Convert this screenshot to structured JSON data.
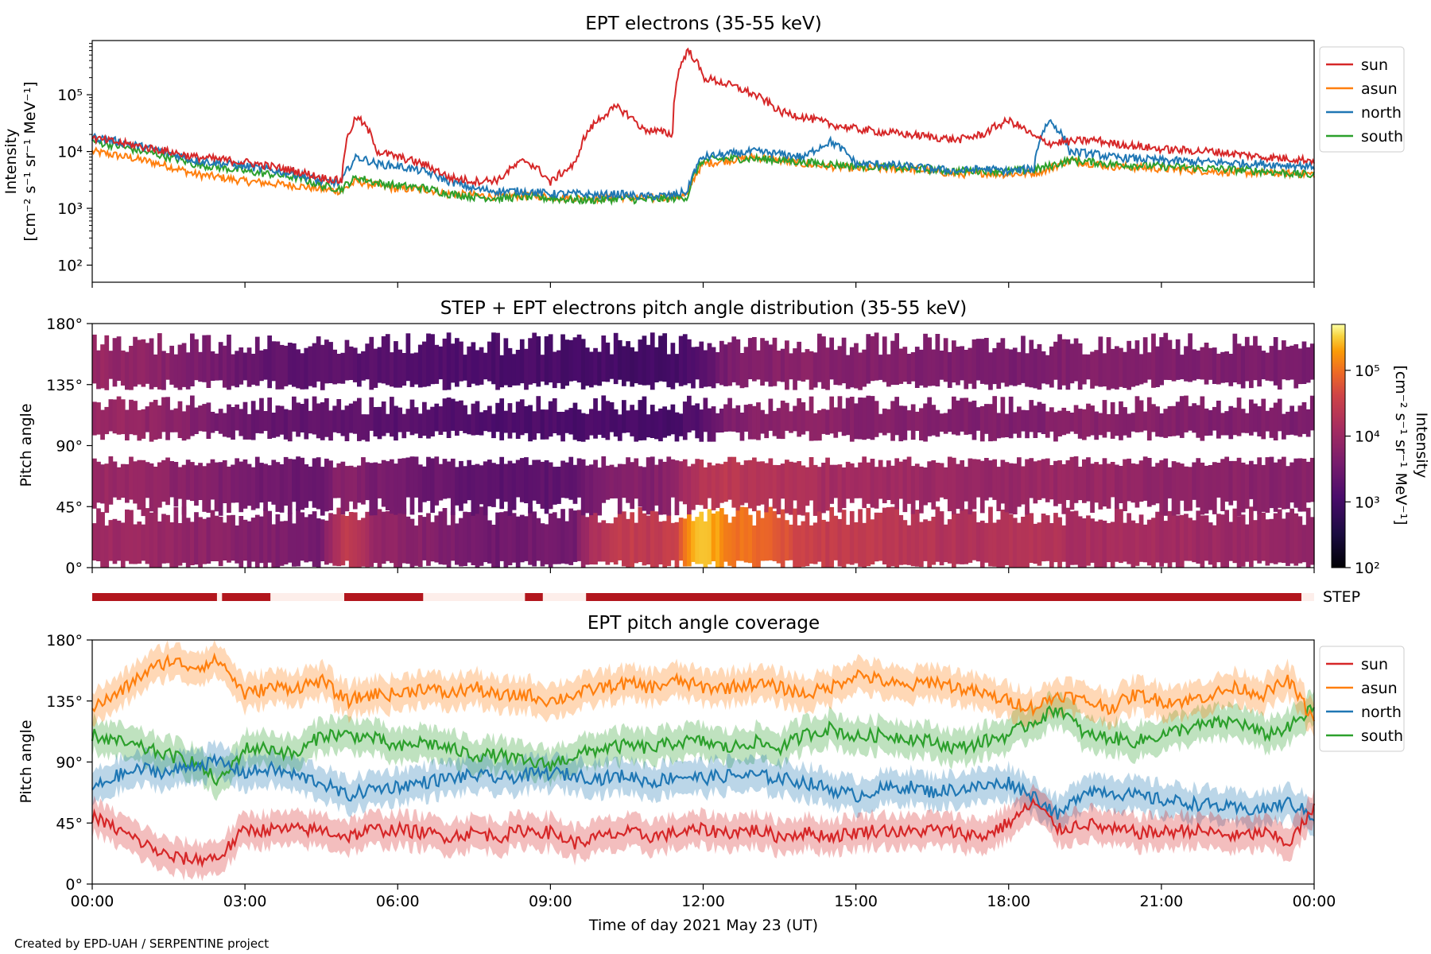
{
  "credit": "Created by EPD-UAH / SERPENTINE project",
  "xlabel": "Time of day 2021 May 23 (UT)",
  "x_ticks": [
    "00:00",
    "03:00",
    "06:00",
    "09:00",
    "12:00",
    "15:00",
    "18:00",
    "21:00",
    "00:00"
  ],
  "step_label": "STEP",
  "colors": {
    "sun": "#d62728",
    "asun": "#ff7f0e",
    "north": "#1f77b4",
    "south": "#2ca02c",
    "step_bar": "#b2161d",
    "step_gap": "#fdeeea"
  },
  "chart_data": [
    {
      "type": "line",
      "title": "EPT electrons (35-55 keV)",
      "ylabel": "Intensity",
      "yunit": "[cm⁻² s⁻¹ sr⁻¹ MeV⁻¹]",
      "yscale": "log",
      "ylim": [
        50,
        900000
      ],
      "y_ticks": [
        "10²",
        "10³",
        "10⁴",
        "10⁵"
      ],
      "legend": [
        "sun",
        "asun",
        "north",
        "south"
      ],
      "legend_position": "outside-right",
      "x_hours": [
        0,
        1,
        2,
        3,
        4,
        4.5,
        4.9,
        5.2,
        5.6,
        6,
        6.5,
        7,
        7.5,
        8,
        8.5,
        9,
        9.5,
        10,
        10.3,
        10.8,
        11.4,
        11.7,
        12,
        12.5,
        13,
        13.5,
        14,
        14.5,
        15,
        15.5,
        16,
        16.5,
        17,
        17.5,
        18,
        18.5,
        18.8,
        19.2,
        19.7,
        20,
        21,
        22,
        23,
        24
      ],
      "series": [
        {
          "name": "sun",
          "values": [
            17000,
            12000,
            8000,
            6500,
            4500,
            3500,
            3000,
            40000,
            10000,
            8000,
            6000,
            3500,
            3000,
            3200,
            7000,
            2800,
            6000,
            40000,
            60000,
            25000,
            20000,
            600000,
            200000,
            150000,
            100000,
            50000,
            40000,
            30000,
            25000,
            22000,
            20000,
            18000,
            16000,
            20000,
            35000,
            18000,
            14000,
            15000,
            16000,
            14000,
            11000,
            10000,
            8000,
            7000
          ]
        },
        {
          "name": "asun",
          "values": [
            10000,
            7000,
            4000,
            3000,
            2500,
            2200,
            2000,
            3000,
            2500,
            2200,
            2200,
            1800,
            1700,
            1600,
            1700,
            1600,
            1500,
            1500,
            1600,
            1500,
            1600,
            1700,
            6000,
            7000,
            8000,
            7000,
            6000,
            5500,
            5000,
            5000,
            5000,
            4500,
            4000,
            4200,
            4000,
            4200,
            5000,
            7000,
            6000,
            5500,
            5000,
            4500,
            4200,
            4000
          ]
        },
        {
          "name": "north",
          "values": [
            18000,
            12000,
            7000,
            5500,
            4000,
            3000,
            2800,
            8000,
            6000,
            5500,
            4500,
            3000,
            2200,
            2000,
            2000,
            1800,
            1800,
            1700,
            1800,
            1600,
            1700,
            2000,
            8000,
            9000,
            10000,
            9000,
            8000,
            15000,
            6000,
            6000,
            5500,
            5000,
            4500,
            5000,
            4500,
            5000,
            35000,
            10000,
            9000,
            8000,
            7000,
            6500,
            6000,
            5500
          ]
        },
        {
          "name": "south",
          "values": [
            15000,
            10000,
            6000,
            4500,
            3500,
            2500,
            2200,
            3500,
            2800,
            2500,
            2300,
            1800,
            1600,
            1500,
            1600,
            1500,
            1400,
            1400,
            1500,
            1400,
            1500,
            1600,
            7000,
            7500,
            7500,
            7000,
            6500,
            6000,
            5500,
            5500,
            5000,
            4800,
            4500,
            4700,
            4500,
            4800,
            5500,
            7000,
            6500,
            6000,
            5500,
            5000,
            4500,
            3800
          ]
        }
      ]
    },
    {
      "type": "heatmap",
      "title": "STEP + EPT electrons pitch angle distribution (35-55 keV)",
      "ylabel": "Pitch angle",
      "ylim": [
        0,
        180
      ],
      "y_ticks": [
        "0°",
        "45°",
        "90°",
        "135°",
        "180°"
      ],
      "colorbar_label": "Intensity",
      "colorbar_unit": "[cm⁻² s⁻¹ sr⁻¹ MeV⁻¹]",
      "colorbar_scale": "log",
      "colorbar_ticks": [
        "10²",
        "10³",
        "10⁴",
        "10⁵"
      ],
      "colorbar_range": [
        100,
        500000
      ],
      "x_hours": [
        0,
        1,
        2,
        3,
        4,
        4.5,
        5,
        5.5,
        6,
        6.5,
        7,
        7.5,
        8,
        8.5,
        9,
        9.5,
        10,
        10.5,
        11,
        11.5,
        12,
        12.5,
        13,
        13.5,
        14,
        14.5,
        15,
        15.5,
        16,
        16.5,
        17,
        17.5,
        18,
        18.5,
        19,
        19.5,
        20,
        20.5,
        21,
        21.5,
        22,
        22.5,
        23,
        23.5,
        24
      ],
      "low_pitch_intensity": [
        12000,
        10000,
        7000,
        5500,
        4000,
        3000,
        25000,
        9000,
        7000,
        5500,
        4500,
        3500,
        3000,
        3500,
        3500,
        3000,
        20000,
        30000,
        25000,
        40000,
        300000,
        120000,
        90000,
        60000,
        40000,
        30000,
        28000,
        25000,
        22000,
        20000,
        18000,
        17000,
        20000,
        22000,
        16000,
        14000,
        14000,
        13000,
        12000,
        11000,
        10000,
        9500,
        9000,
        8000,
        7500
      ],
      "high_pitch_intensity": [
        9000,
        7000,
        4500,
        2500,
        2000,
        1800,
        1800,
        1700,
        1600,
        1500,
        1400,
        1300,
        1200,
        1200,
        1200,
        1100,
        1100,
        1000,
        1000,
        1100,
        1500,
        4000,
        5000,
        5500,
        6000,
        5500,
        5000,
        5000,
        4800,
        4600,
        4500,
        4300,
        4200,
        4400,
        4800,
        5500,
        5200,
        5000,
        4800,
        4600,
        4500,
        4300,
        4200,
        4000,
        3800
      ]
    },
    {
      "type": "line",
      "title": "EPT pitch angle coverage",
      "ylabel": "Pitch angle",
      "ylim": [
        0,
        180
      ],
      "y_ticks": [
        "0°",
        "45°",
        "90°",
        "135°",
        "180°"
      ],
      "legend": [
        "sun",
        "asun",
        "north",
        "south"
      ],
      "legend_position": "outside-right",
      "x_hours": [
        0,
        0.5,
        1,
        1.5,
        2,
        2.5,
        3,
        3.5,
        4,
        4.5,
        5,
        5.5,
        6,
        6.5,
        7,
        7.5,
        8,
        8.5,
        9,
        9.5,
        10,
        10.5,
        11,
        11.5,
        12,
        12.5,
        13,
        13.5,
        14,
        14.5,
        15,
        15.5,
        16,
        16.5,
        17,
        17.5,
        18,
        18.5,
        19,
        19.5,
        20,
        20.5,
        21,
        21.5,
        22,
        22.5,
        23,
        23.5,
        24
      ],
      "series": [
        {
          "name": "sun",
          "values": [
            50,
            40,
            30,
            20,
            18,
            20,
            40,
            40,
            40,
            40,
            35,
            40,
            40,
            38,
            35,
            38,
            35,
            40,
            38,
            30,
            35,
            38,
            35,
            38,
            40,
            38,
            40,
            35,
            38,
            35,
            38,
            40,
            38,
            40,
            38,
            35,
            45,
            60,
            40,
            45,
            40,
            38,
            38,
            40,
            38,
            35,
            38,
            30,
            55
          ]
        },
        {
          "name": "asun",
          "values": [
            130,
            140,
            155,
            165,
            160,
            165,
            140,
            145,
            145,
            150,
            135,
            140,
            140,
            145,
            140,
            145,
            138,
            140,
            135,
            140,
            145,
            148,
            145,
            150,
            145,
            145,
            148,
            145,
            140,
            145,
            155,
            150,
            145,
            150,
            145,
            140,
            135,
            130,
            140,
            135,
            130,
            140,
            135,
            135,
            140,
            145,
            140,
            150,
            120
          ]
        },
        {
          "name": "north",
          "values": [
            70,
            80,
            85,
            82,
            88,
            90,
            82,
            85,
            80,
            75,
            65,
            70,
            72,
            75,
            78,
            80,
            78,
            80,
            82,
            80,
            78,
            80,
            75,
            80,
            78,
            80,
            80,
            78,
            75,
            70,
            65,
            70,
            72,
            68,
            70,
            72,
            75,
            65,
            50,
            70,
            68,
            65,
            62,
            60,
            58,
            55,
            55,
            60,
            50
          ]
        },
        {
          "name": "south",
          "values": [
            110,
            105,
            100,
            95,
            90,
            75,
            100,
            100,
            95,
            110,
            110,
            108,
            100,
            105,
            100,
            95,
            95,
            90,
            88,
            95,
            100,
            102,
            100,
            105,
            105,
            100,
            105,
            100,
            110,
            115,
            108,
            110,
            108,
            105,
            100,
            105,
            110,
            120,
            130,
            110,
            108,
            105,
            110,
            115,
            118,
            120,
            110,
            115,
            130
          ]
        }
      ],
      "band_halfwidth_deg": 12
    }
  ],
  "step_coverage_hours": [
    [
      0,
      2.45
    ],
    [
      2.55,
      3.5
    ],
    [
      4.95,
      6.5
    ],
    [
      8.5,
      8.85
    ],
    [
      9.7,
      23.75
    ]
  ]
}
